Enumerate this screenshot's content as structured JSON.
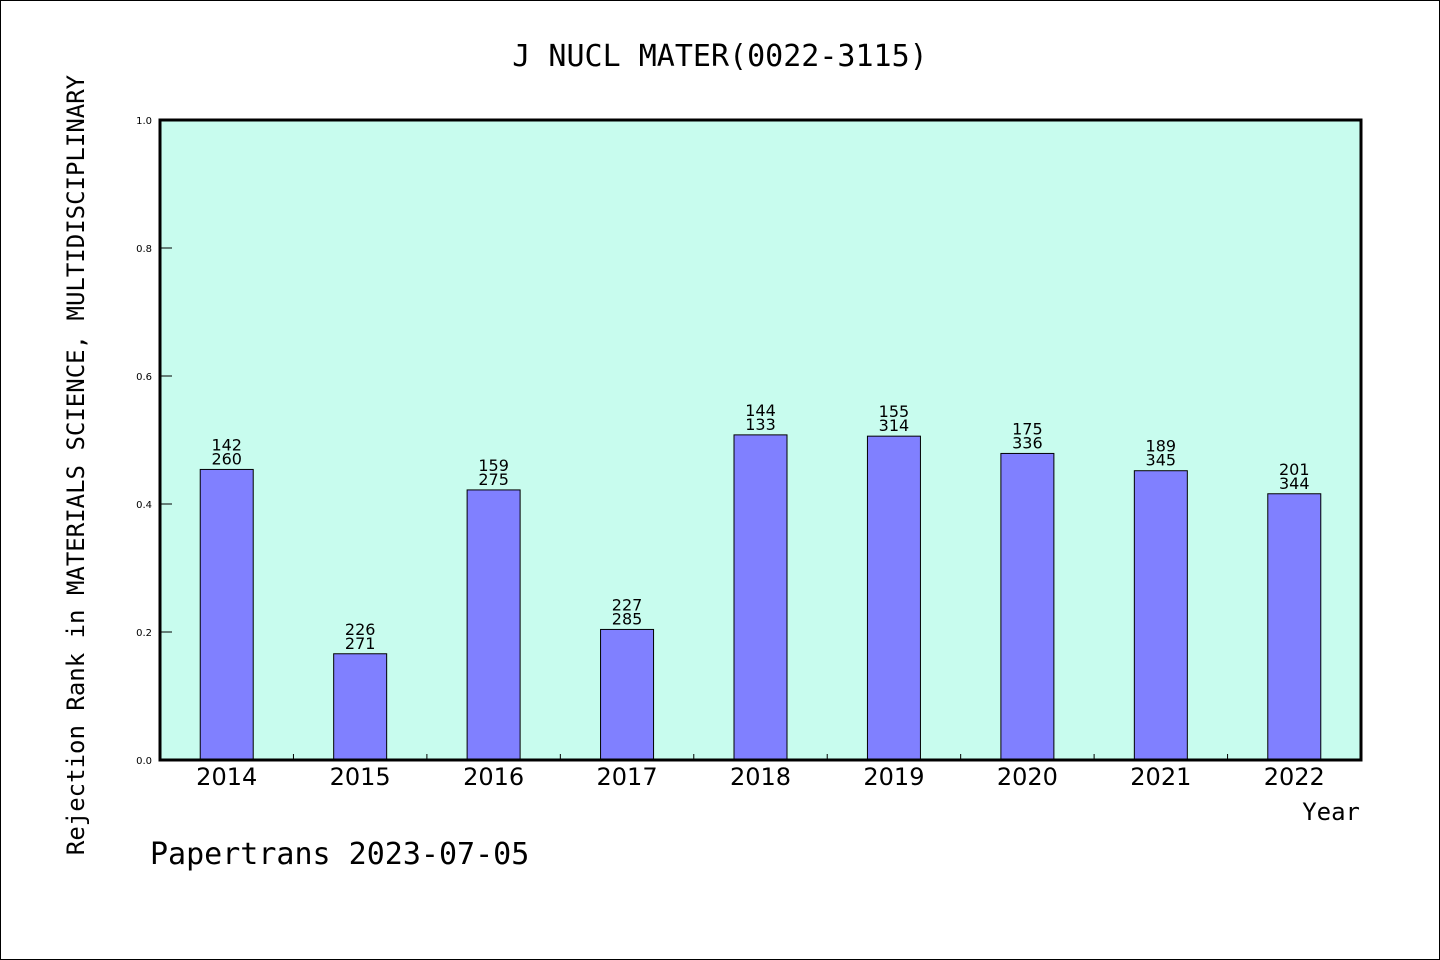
{
  "chart_data": {
    "type": "bar",
    "title": "J NUCL MATER(0022-3115)",
    "xlabel": "Year",
    "ylabel": "Rejection Rank in MATERIALS SCIENCE, MULTIDISCIPLINARY",
    "ylim": [
      0,
      1.0
    ],
    "yticks": [
      "0.0",
      "0.2",
      "0.4",
      "0.6",
      "0.8",
      "1.0"
    ],
    "categories": [
      "2014",
      "2015",
      "2016",
      "2017",
      "2018",
      "2019",
      "2020",
      "2021",
      "2022"
    ],
    "values": [
      0.454,
      0.166,
      0.422,
      0.204,
      0.508,
      0.506,
      0.479,
      0.452,
      0.416
    ],
    "labels_top": [
      "142",
      "226",
      "159",
      "227",
      "144",
      "155",
      "175",
      "189",
      "201"
    ],
    "labels_bottom": [
      "260",
      "271",
      "275",
      "285",
      "133",
      "314",
      "336",
      "345",
      "344"
    ],
    "grid": false,
    "colors": {
      "bar": "#8080ff",
      "plot_bg": "#c8fcee",
      "edge": "#000000"
    }
  },
  "footer": "Papertrans 2023-07-05"
}
